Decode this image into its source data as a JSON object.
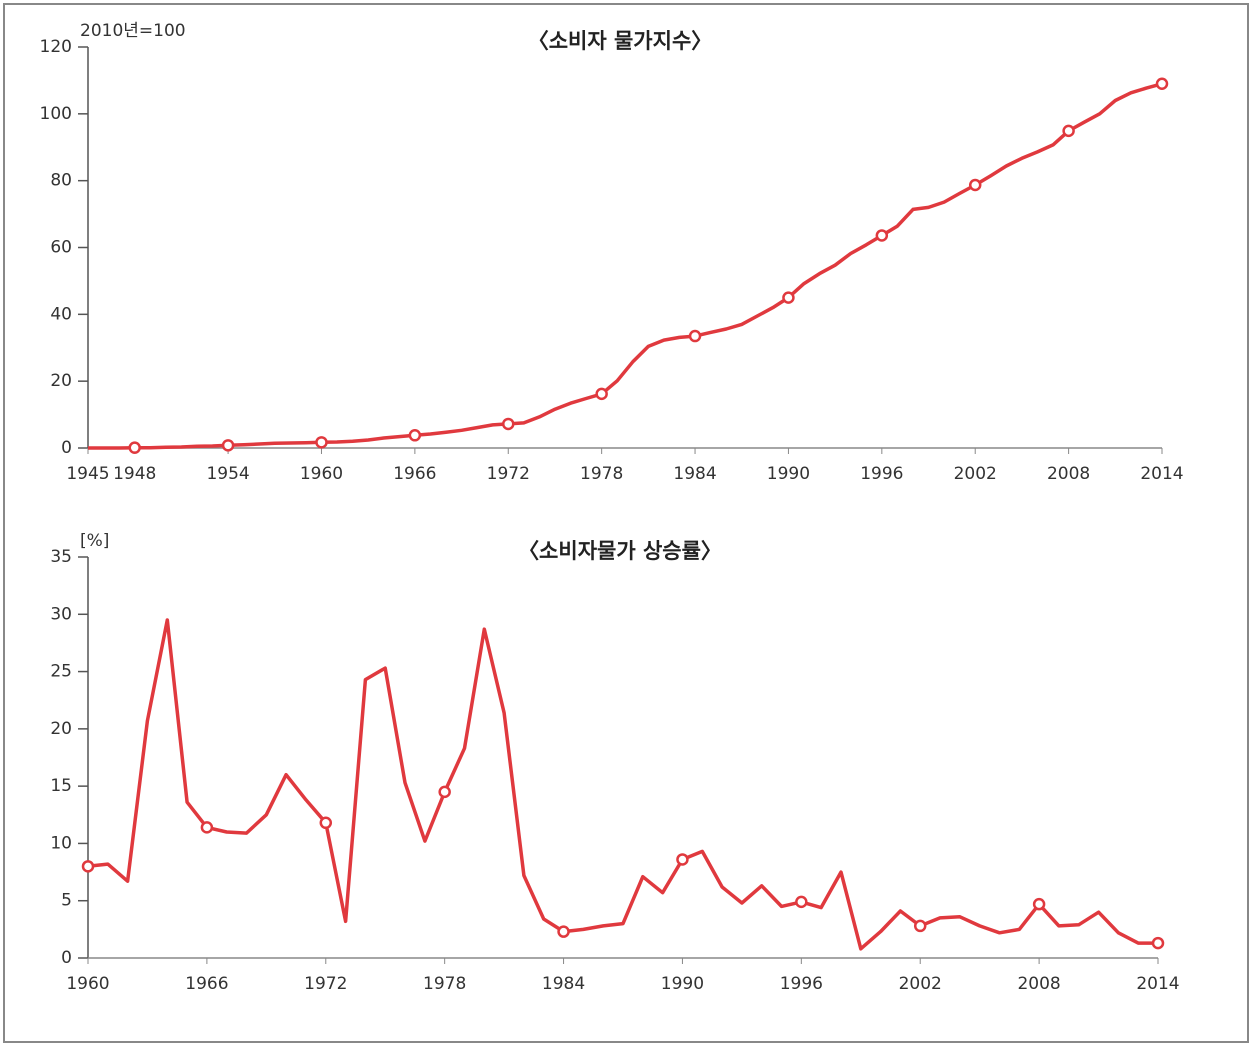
{
  "chart_data": [
    {
      "type": "line",
      "title": "〈소비자 물가지수〉",
      "y_label": "2010년=100",
      "color": "#e0393e",
      "x": [
        1945,
        1946,
        1947,
        1948,
        1949,
        1950,
        1951,
        1952,
        1953,
        1954,
        1955,
        1956,
        1957,
        1958,
        1959,
        1960,
        1961,
        1962,
        1963,
        1964,
        1965,
        1966,
        1967,
        1968,
        1969,
        1970,
        1971,
        1972,
        1973,
        1974,
        1975,
        1976,
        1977,
        1978,
        1979,
        1980,
        1981,
        1982,
        1983,
        1984,
        1985,
        1986,
        1987,
        1988,
        1989,
        1990,
        1991,
        1992,
        1993,
        1994,
        1995,
        1996,
        1997,
        1998,
        1999,
        2000,
        2001,
        2002,
        2003,
        2004,
        2005,
        2006,
        2007,
        2008,
        2009,
        2010,
        2011,
        2012,
        2013,
        2014
      ],
      "values": [
        0,
        0,
        0,
        0.1,
        0.1,
        0.2,
        0.3,
        0.5,
        0.6,
        0.8,
        1.0,
        1.2,
        1.4,
        1.5,
        1.6,
        1.7,
        1.8,
        2.0,
        2.4,
        3.0,
        3.4,
        3.8,
        4.2,
        4.7,
        5.3,
        6.1,
        6.9,
        7.2,
        7.5,
        9.3,
        11.6,
        13.4,
        14.8,
        16.2,
        20.1,
        25.8,
        30.4,
        32.3,
        33.1,
        33.5,
        34.6,
        35.6,
        37.0,
        39.5,
        42.0,
        45.0,
        49.2,
        52.2,
        54.7,
        58.2,
        60.8,
        63.6,
        66.4,
        71.4,
        72.0,
        73.6,
        76.2,
        78.7,
        81.5,
        84.4,
        86.7,
        88.6,
        90.7,
        94.9,
        97.5,
        100,
        104,
        106.3,
        107.7,
        109
      ],
      "xlim": [
        1945,
        2014
      ],
      "xticks": [
        1945,
        1948,
        1954,
        1960,
        1966,
        1972,
        1978,
        1984,
        1990,
        1996,
        2002,
        2008,
        2014
      ],
      "ylim": [
        0,
        120
      ],
      "yticks": [
        0,
        20,
        40,
        60,
        80,
        100,
        120
      ]
    },
    {
      "type": "line",
      "title": "〈소비자물가 상승률〉",
      "y_label": "[%]",
      "color": "#e0393e",
      "x": [
        1960,
        1961,
        1962,
        1963,
        1964,
        1965,
        1966,
        1967,
        1968,
        1969,
        1970,
        1971,
        1972,
        1973,
        1974,
        1975,
        1976,
        1977,
        1978,
        1979,
        1980,
        1981,
        1982,
        1983,
        1984,
        1985,
        1986,
        1987,
        1988,
        1989,
        1990,
        1991,
        1992,
        1993,
        1994,
        1995,
        1996,
        1997,
        1998,
        1999,
        2000,
        2001,
        2002,
        2003,
        2004,
        2005,
        2006,
        2007,
        2008,
        2009,
        2010,
        2011,
        2012,
        2013,
        2014
      ],
      "values": [
        8.0,
        8.2,
        6.7,
        20.7,
        29.5,
        13.6,
        11.4,
        11.0,
        10.9,
        12.5,
        16.0,
        13.8,
        11.8,
        3.2,
        24.3,
        25.3,
        15.3,
        10.2,
        14.5,
        18.3,
        28.7,
        21.4,
        7.2,
        3.4,
        2.3,
        2.5,
        2.8,
        3.0,
        7.1,
        5.7,
        8.6,
        9.3,
        6.2,
        4.8,
        6.3,
        4.5,
        4.9,
        4.4,
        7.5,
        0.8,
        2.3,
        4.1,
        2.8,
        3.5,
        3.6,
        2.8,
        2.2,
        2.5,
        4.7,
        2.8,
        2.9,
        4.0,
        2.2,
        1.3,
        1.3
      ],
      "xlim": [
        1960,
        2014
      ],
      "xticks": [
        1960,
        1966,
        1972,
        1978,
        1984,
        1990,
        1996,
        2002,
        2008,
        2014
      ],
      "ylim": [
        0,
        35
      ],
      "yticks": [
        0,
        5,
        10,
        15,
        20,
        25,
        30,
        35
      ]
    }
  ]
}
